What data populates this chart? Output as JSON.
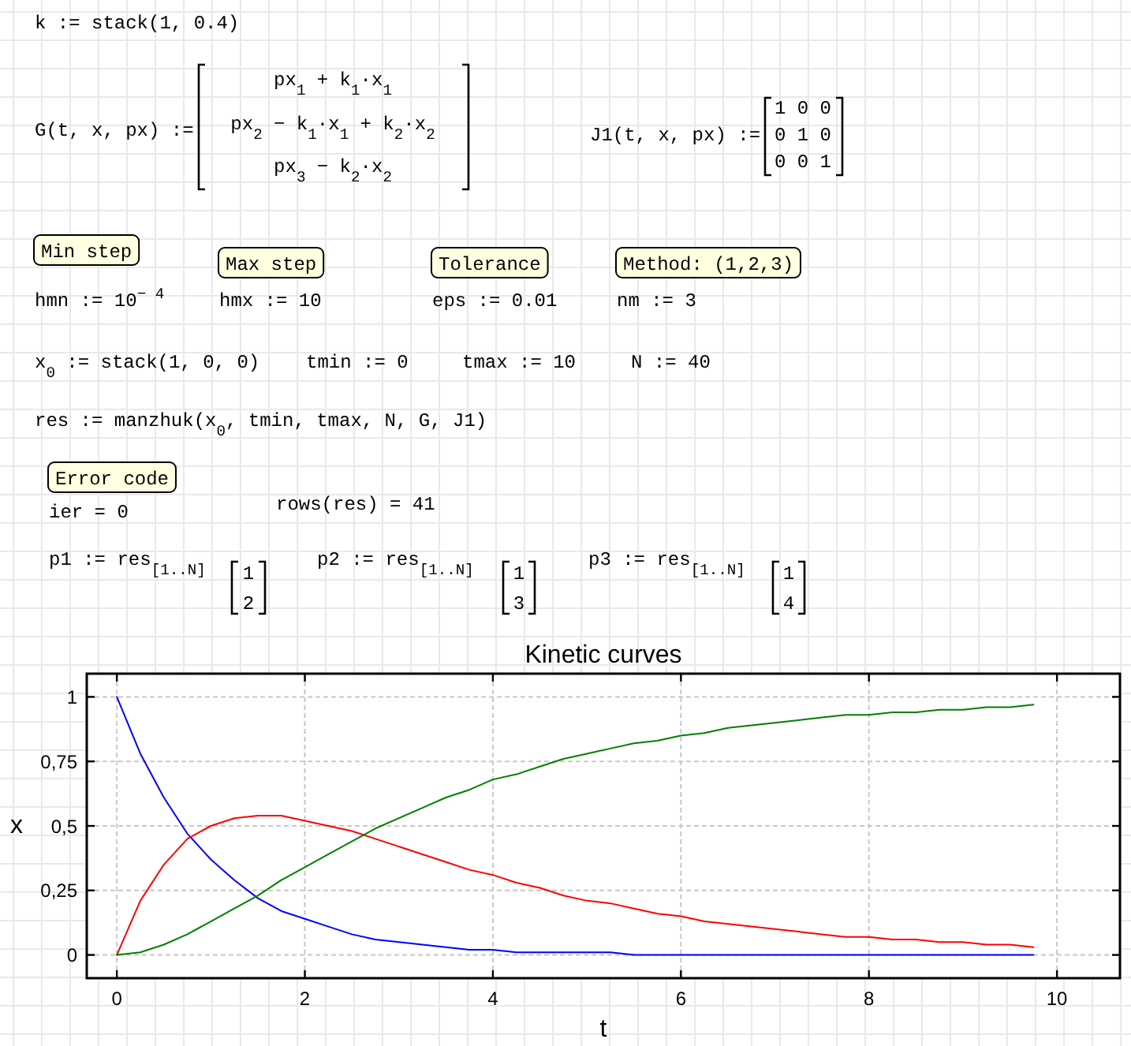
{
  "chart_data": {
    "type": "line",
    "title": "Kinetic curves",
    "xlabel": "t",
    "ylabel": "x",
    "x": [
      0,
      0.25,
      0.5,
      0.75,
      1,
      1.25,
      1.5,
      1.75,
      2,
      2.25,
      2.5,
      2.75,
      3,
      3.25,
      3.5,
      3.75,
      4,
      4.25,
      4.5,
      4.75,
      5,
      5.25,
      5.5,
      5.75,
      6,
      6.25,
      6.5,
      6.75,
      7,
      7.25,
      7.5,
      7.75,
      8,
      8.25,
      8.5,
      8.75,
      9,
      9.25,
      9.5,
      9.75
    ],
    "series": [
      {
        "color": "#0000ff",
        "values": [
          1,
          0.78,
          0.61,
          0.47,
          0.37,
          0.29,
          0.22,
          0.17,
          0.14,
          0.11,
          0.08,
          0.06,
          0.05,
          0.04,
          0.03,
          0.02,
          0.02,
          0.01,
          0.01,
          0.01,
          0.01,
          0.01,
          0,
          0,
          0,
          0,
          0,
          0,
          0,
          0,
          0,
          0,
          0,
          0,
          0,
          0,
          0,
          0,
          0,
          0
        ]
      },
      {
        "color": "#ff0000",
        "values": [
          0,
          0.21,
          0.35,
          0.45,
          0.5,
          0.53,
          0.54,
          0.54,
          0.52,
          0.5,
          0.48,
          0.45,
          0.42,
          0.39,
          0.36,
          0.33,
          0.31,
          0.28,
          0.26,
          0.23,
          0.21,
          0.2,
          0.18,
          0.16,
          0.15,
          0.13,
          0.12,
          0.11,
          0.1,
          0.09,
          0.08,
          0.07,
          0.07,
          0.06,
          0.06,
          0.05,
          0.05,
          0.04,
          0.04,
          0.03
        ]
      },
      {
        "color": "#008000",
        "values": [
          0,
          0.01,
          0.04,
          0.08,
          0.13,
          0.18,
          0.23,
          0.29,
          0.34,
          0.39,
          0.44,
          0.49,
          0.53,
          0.57,
          0.61,
          0.64,
          0.68,
          0.7,
          0.73,
          0.76,
          0.78,
          0.8,
          0.82,
          0.83,
          0.85,
          0.86,
          0.88,
          0.89,
          0.9,
          0.91,
          0.92,
          0.93,
          0.93,
          0.94,
          0.94,
          0.95,
          0.95,
          0.96,
          0.96,
          0.97
        ]
      }
    ],
    "xlim": [
      -0.32,
      10.67
    ],
    "ylim": [
      -0.09,
      1.09
    ],
    "xticks": [
      0,
      2,
      4,
      6,
      8,
      10
    ],
    "yticks": [
      0,
      {
        "value": 0.25,
        "label": "0,25"
      },
      {
        "value": 0.5,
        "label": "0,5"
      },
      {
        "value": 0.75,
        "label": "0,75"
      },
      1
    ],
    "grid": true,
    "annotations": [
      "k := stack(1, 0.4)",
      "G(t, x, px) :=",
      "px$_{1}$ + k$_{1}$·x$_{1}$",
      "px$_{2}$ − k$_{1}$·x$_{1}$ + k$_{2}$·x$_{2}$",
      "px$_{3}$ − k$_{2}$·x$_{2}$",
      "J1(t, x, px) :=",
      "1 0 0",
      "0 1 0",
      "0 0 1",
      "Min step",
      "Max step",
      "Tolerance",
      "Method: (1,2,3)",
      "hmn := 10$^{− 4}$",
      "hmx := 10",
      "eps := 0.01",
      "nm := 3",
      "x$_{0}$ := stack(1, 0, 0)",
      "tmin := 0",
      "tmax := 10",
      "N := 40",
      "res := manzhuk(x$_{0}$, tmin, tmax, N, G, J1)",
      "Error code",
      "ier = 0",
      "rows(res) = 41",
      "p1 := res$_{[1..N]}$",
      "1",
      "2",
      "p2 := res$_{[1..N]}$",
      "1",
      "3",
      "p3 := res$_{[1..N]}$",
      "1",
      "4"
    ]
  }
}
